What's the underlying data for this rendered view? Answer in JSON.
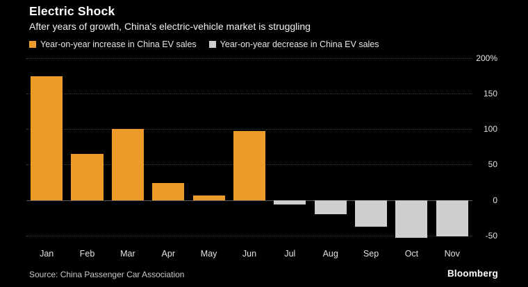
{
  "header": {
    "title": "Electric Shock",
    "subtitle": "After years of growth, China's electric-vehicle market is struggling"
  },
  "legend": [
    {
      "label": "Year-on-year increase in China EV sales",
      "color": "#EC9A28"
    },
    {
      "label": "Year-on-year decrease in China EV sales",
      "color": "#CFCFCF"
    }
  ],
  "footer": {
    "source": "Source: China Passenger Car Association",
    "brand": "Bloomberg"
  },
  "chart_data": {
    "type": "bar",
    "title": "Electric Shock",
    "subtitle": "After years of growth, China's electric-vehicle market is struggling",
    "categories": [
      "Jan",
      "Feb",
      "Mar",
      "Apr",
      "May",
      "Jun",
      "Jul",
      "Aug",
      "Sep",
      "Oct",
      "Nov"
    ],
    "values": [
      175,
      65,
      100,
      24,
      6,
      97,
      -6,
      -20,
      -38,
      -53,
      -51
    ],
    "xlabel": "",
    "ylabel": "",
    "ylim": [
      -60,
      200
    ],
    "yticks": [
      200,
      150,
      100,
      50,
      0,
      -50
    ],
    "ytick_labels": [
      "200%",
      "150",
      "100",
      "50",
      "0",
      "-50"
    ],
    "positive_color": "#EC9A28",
    "negative_color": "#CFCFCF",
    "grid": "horizontal dotted, dark gray, y-axis labels on right",
    "legend_position": "top-left"
  }
}
